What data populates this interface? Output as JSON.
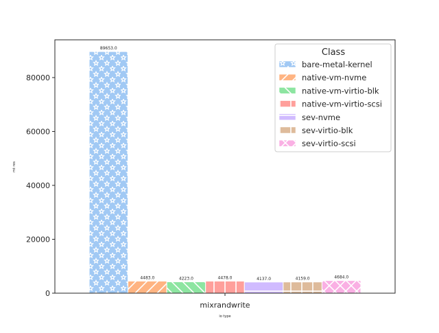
{
  "chart_data": {
    "type": "bar",
    "categories": [
      "mixrandwrite"
    ],
    "xlabel": "io type",
    "ylabel": "mt res",
    "ylim": [
      0,
      94000
    ],
    "yticks": [
      0,
      20000,
      40000,
      60000,
      80000
    ],
    "grid": false,
    "legend": {
      "title": "Class",
      "placement": "top-right"
    },
    "series": [
      {
        "name": "bare-metal-kernel",
        "values": [
          89653.0
        ],
        "label": "89653.0",
        "color": "#a1c9f4",
        "hatch": "stars"
      },
      {
        "name": "native-vm-nvme",
        "values": [
          4483.0
        ],
        "label": "4483.0",
        "color": "#ffb482",
        "hatch": "slash"
      },
      {
        "name": "native-vm-virtio-blk",
        "values": [
          4223.0
        ],
        "label": "4223.0",
        "color": "#8de5a1",
        "hatch": "backslash"
      },
      {
        "name": "native-vm-virtio-scsi",
        "values": [
          4478.0
        ],
        "label": "4478.0",
        "color": "#ff9f9b",
        "hatch": "vertical"
      },
      {
        "name": "sev-nvme",
        "values": [
          4137.0
        ],
        "label": "4137.0",
        "color": "#d0bbff",
        "hatch": "horizontal"
      },
      {
        "name": "sev-virtio-blk",
        "values": [
          4159.0
        ],
        "label": "4159.0",
        "color": "#debb9b",
        "hatch": "plus"
      },
      {
        "name": "sev-virtio-scsi",
        "values": [
          4684.0
        ],
        "label": "4684.0",
        "color": "#fab0e4",
        "hatch": "cross"
      }
    ]
  }
}
